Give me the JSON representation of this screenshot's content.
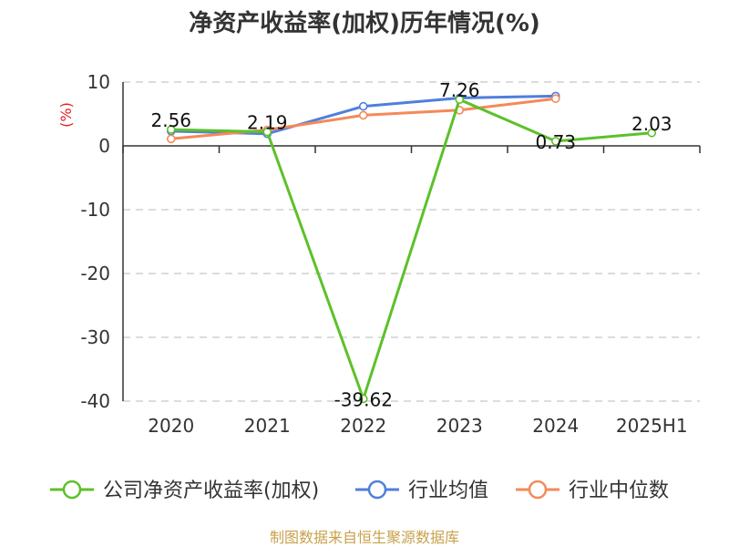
{
  "chart_data": {
    "type": "line",
    "title": "净资产收益率(加权)历年情况(%)",
    "unit_label": "(%)",
    "categories": [
      "2020",
      "2021",
      "2022",
      "2023",
      "2024",
      "2025H1"
    ],
    "ylim": [
      -40,
      10
    ],
    "yticks": [
      10,
      0,
      -10,
      -20,
      -30,
      -40
    ],
    "grid": true,
    "legend_position": "bottom",
    "series": [
      {
        "name": "公司净资产收益率(加权)",
        "color": "#5cc12a",
        "values": [
          2.56,
          2.19,
          -39.62,
          7.26,
          0.73,
          2.03
        ],
        "labels": [
          "2.56",
          "2.19",
          "-39.62",
          "7.26",
          "0.73",
          "2.03"
        ]
      },
      {
        "name": "行业均值",
        "color": "#4f7fdc",
        "values": [
          2.3,
          1.9,
          6.2,
          7.5,
          7.8,
          null
        ]
      },
      {
        "name": "行业中位数",
        "color": "#f4895a",
        "values": [
          1.1,
          2.5,
          4.8,
          5.6,
          7.4,
          null
        ]
      }
    ]
  },
  "source": "制图数据来自恒生聚源数据库"
}
